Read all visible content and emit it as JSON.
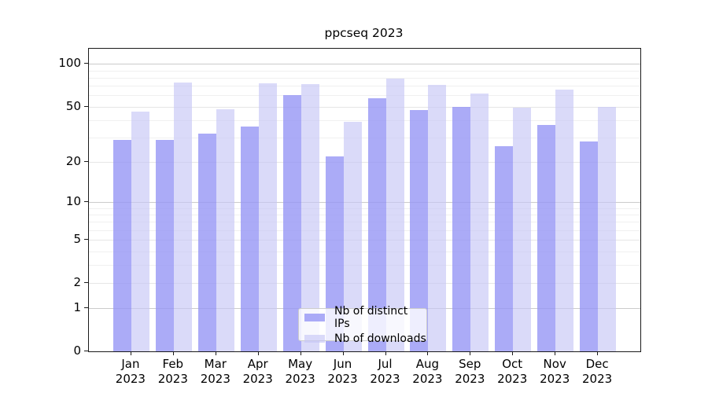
{
  "chart_data": {
    "type": "bar",
    "title": "ppcseq 2023",
    "categories": [
      "Jan 2023",
      "Feb 2023",
      "Mar 2023",
      "Apr 2023",
      "May 2023",
      "Jun 2023",
      "Jul 2023",
      "Aug 2023",
      "Sep 2023",
      "Oct 2023",
      "Nov 2023",
      "Dec 2023"
    ],
    "series": [
      {
        "name": "Nb of distinct IPs",
        "color": "rgba(150,150,245,0.8)",
        "values": [
          29,
          29,
          32,
          36,
          60,
          22,
          57,
          47,
          50,
          26,
          37,
          28
        ]
      },
      {
        "name": "Nb of downloads",
        "color": "rgba(198,198,246,0.65)",
        "values": [
          46,
          74,
          48,
          73,
          72,
          39,
          79,
          71,
          62,
          49,
          66,
          50
        ]
      }
    ],
    "xlabel": "",
    "ylabel": "",
    "y_scale": "log1p",
    "ylim": [
      0,
      128
    ],
    "y_ticks": [
      0,
      1,
      2,
      5,
      10,
      20,
      50,
      100
    ],
    "y_minor_ticks": [
      3,
      4,
      6,
      7,
      8,
      9,
      30,
      40,
      60,
      70,
      80,
      90
    ],
    "grid": "horizontal",
    "legend_position": "lower center",
    "grid_major_decade_color": "#cbcbcb",
    "grid_major_color": "#e6e6e6",
    "grid_minor_color": "#f0f0f0"
  }
}
